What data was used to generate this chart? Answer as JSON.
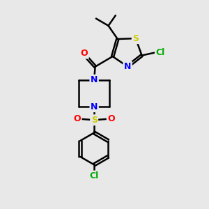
{
  "bg_color": "#e8e8e8",
  "bond_color": "#000000",
  "bond_width": 1.8,
  "atom_colors": {
    "S": "#cccc00",
    "N": "#0000ff",
    "O": "#ff0000",
    "Cl": "#00aa00",
    "C": "#000000"
  },
  "font_size": 9
}
